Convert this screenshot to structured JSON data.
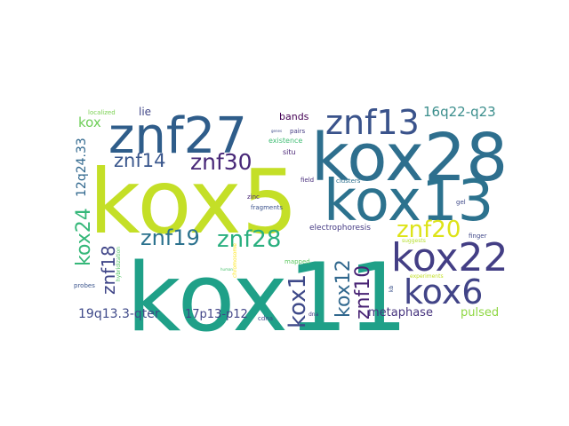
{
  "words": [
    {
      "text": "kox5",
      "color": "#c4df27"
    },
    {
      "text": "kox11",
      "color": "#1fa088"
    },
    {
      "text": "kox28",
      "color": "#2e6f8e"
    },
    {
      "text": "znf27",
      "color": "#2f5d8a"
    },
    {
      "text": "kox13",
      "color": "#2c728e"
    },
    {
      "text": "znf13",
      "color": "#3a538b"
    },
    {
      "text": "kox22",
      "color": "#433e85"
    },
    {
      "text": "kox6",
      "color": "#414487"
    },
    {
      "text": "znf30",
      "color": "#482878"
    },
    {
      "text": "znf14",
      "color": "#39568c"
    },
    {
      "text": "znf19",
      "color": "#2c728e"
    },
    {
      "text": "znf28",
      "color": "#29af7f"
    },
    {
      "text": "znf20",
      "color": "#dde318"
    },
    {
      "text": "kox24",
      "color": "#35b779"
    },
    {
      "text": "znf18",
      "color": "#404688"
    },
    {
      "text": "kox1",
      "color": "#3e4989"
    },
    {
      "text": "kox12",
      "color": "#31688e"
    },
    {
      "text": "znf10",
      "color": "#482374"
    },
    {
      "text": "16q22-q23",
      "color": "#3b8e8c"
    },
    {
      "text": "12q24.33",
      "color": "#31688e"
    },
    {
      "text": "19q13.3-qter",
      "color": "#3e4989"
    },
    {
      "text": "17p13-p12",
      "color": "#414487"
    },
    {
      "text": "kox",
      "color": "#6ece58"
    },
    {
      "text": "metaphase",
      "color": "#46337e"
    },
    {
      "text": "pulsed",
      "color": "#8fd744"
    },
    {
      "text": "lie",
      "color": "#404688"
    },
    {
      "text": "bands",
      "color": "#440154"
    },
    {
      "text": "electrophoresis",
      "color": "#443983"
    },
    {
      "text": "localized",
      "color": "#7ad151"
    },
    {
      "text": "existence",
      "color": "#3fbc73"
    },
    {
      "text": "situ",
      "color": "#482475"
    },
    {
      "text": "pairs",
      "color": "#443a83"
    },
    {
      "text": "genes",
      "color": "#3e4c8a"
    },
    {
      "text": "clusters",
      "color": "#2d708e"
    },
    {
      "text": "field",
      "color": "#472d7b"
    },
    {
      "text": "zinc",
      "color": "#482677"
    },
    {
      "text": "fragments",
      "color": "#3b528b"
    },
    {
      "text": "gel",
      "color": "#3e4989"
    },
    {
      "text": "finger",
      "color": "#3f4788"
    },
    {
      "text": "suggests",
      "color": "#b5de2b"
    },
    {
      "text": "mapped",
      "color": "#5ec962"
    },
    {
      "text": "chromosome",
      "color": "#fde725"
    },
    {
      "text": "human",
      "color": "#4ac16d"
    },
    {
      "text": "hybridization",
      "color": "#56c667"
    },
    {
      "text": "probes",
      "color": "#3a548c"
    },
    {
      "text": "cdna",
      "color": "#3e4989"
    },
    {
      "text": "dna",
      "color": "#443a83"
    },
    {
      "text": "kb",
      "color": "#3b528b"
    },
    {
      "text": "experiments",
      "color": "#c2df23"
    }
  ]
}
